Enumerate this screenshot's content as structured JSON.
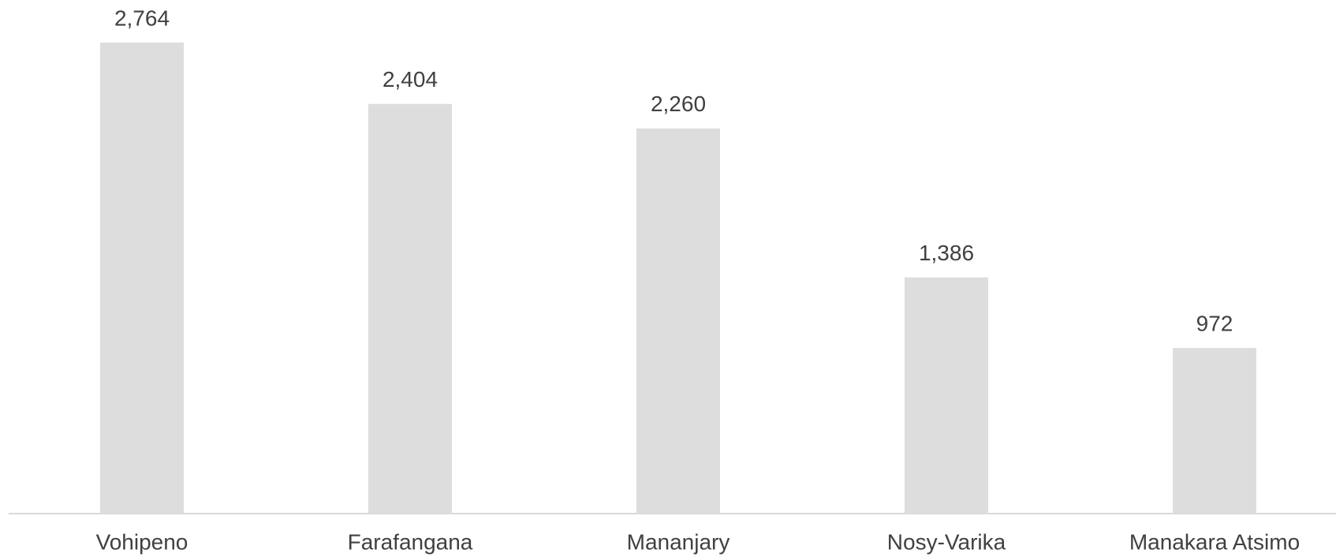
{
  "chart_data": {
    "type": "bar",
    "categories": [
      "Vohipeno",
      "Farafangana",
      "Mananjary",
      "Nosy-Varika",
      "Manakara Atsimo"
    ],
    "values": [
      2764,
      2404,
      2260,
      1386,
      972
    ],
    "value_labels": [
      "2,764",
      "2,404",
      "2,260",
      "1,386",
      "972"
    ],
    "color": "#dddddd",
    "ylim": [
      0,
      3000
    ]
  }
}
